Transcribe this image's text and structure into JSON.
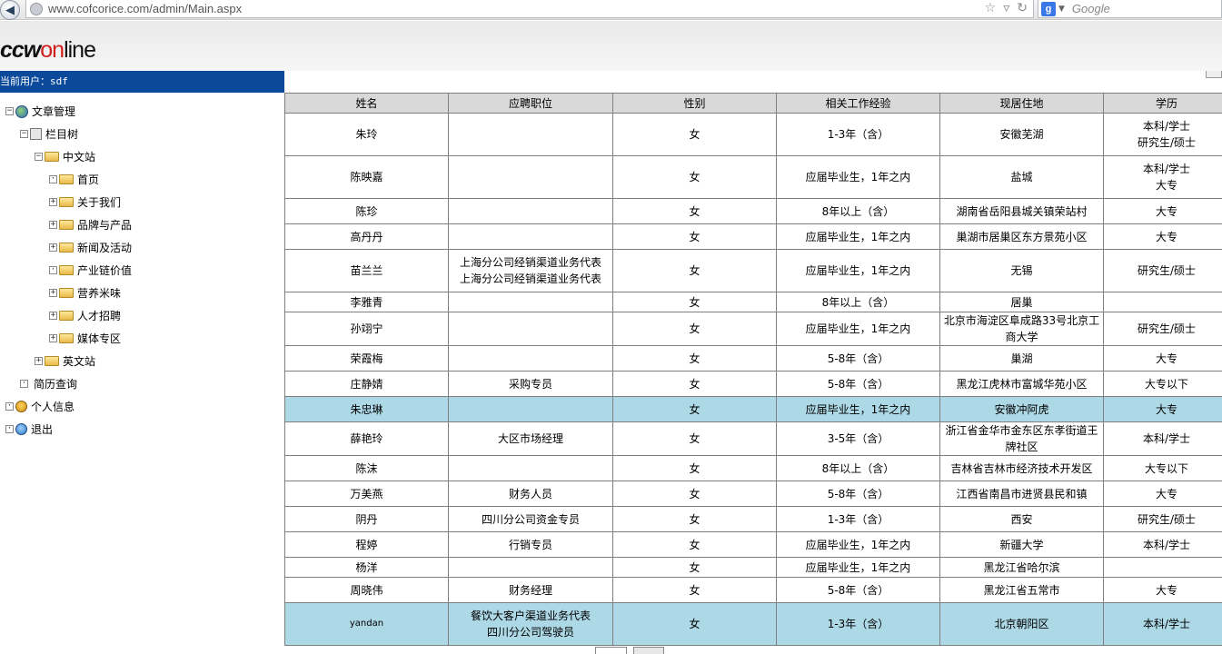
{
  "browser": {
    "url": "www.cofcorice.com/admin/Main.aspx",
    "search_placeholder": "Google"
  },
  "header": {
    "logo_prefix": "ccw",
    "logo_on": "on",
    "logo_suffix": "line"
  },
  "sidebar": {
    "current_user_label": "当前用户：",
    "current_user": "sdf",
    "tree": [
      {
        "label": "文章管理",
        "level": 0,
        "exp": "−",
        "icon": "globe-icon"
      },
      {
        "label": "栏目树",
        "level": 1,
        "exp": "−",
        "icon": "book-icon"
      },
      {
        "label": "中文站",
        "level": 2,
        "exp": "−",
        "icon": "folder-icon"
      },
      {
        "label": "首页",
        "level": 3,
        "exp": "·",
        "icon": "folder-icon"
      },
      {
        "label": "关于我们",
        "level": 3,
        "exp": "+",
        "icon": "folder-icon"
      },
      {
        "label": "品牌与产品",
        "level": 3,
        "exp": "+",
        "icon": "folder-icon"
      },
      {
        "label": "新闻及活动",
        "level": 3,
        "exp": "+",
        "icon": "folder-icon"
      },
      {
        "label": "产业链价值",
        "level": 3,
        "exp": "·",
        "icon": "folder-icon"
      },
      {
        "label": "营养米味",
        "level": 3,
        "exp": "+",
        "icon": "folder-icon"
      },
      {
        "label": "人才招聘",
        "level": 3,
        "exp": "+",
        "icon": "folder-icon"
      },
      {
        "label": "媒体专区",
        "level": 3,
        "exp": "+",
        "icon": "folder-icon"
      },
      {
        "label": "英文站",
        "level": 2,
        "exp": "+",
        "icon": "folder-icon"
      },
      {
        "label": "简历查询",
        "level": 1,
        "exp": "·",
        "icon": "none"
      },
      {
        "label": "个人信息",
        "level": 0,
        "exp": "·",
        "icon": "person-icon"
      },
      {
        "label": "退出",
        "level": 0,
        "exp": "·",
        "icon": "exit-icon"
      }
    ]
  },
  "table": {
    "headers": [
      "姓名",
      "应聘职位",
      "性别",
      "相关工作经验",
      "现居住地",
      "学历"
    ],
    "rows": [
      {
        "name": "朱玲",
        "position": "",
        "gender": "女",
        "exp": "1-3年（含）",
        "address": "安徽芜湖",
        "edu": "本科/学士\n研究生/硕士",
        "h": 47
      },
      {
        "name": "陈映嘉",
        "position": "",
        "gender": "女",
        "exp": "应届毕业生，1年之内",
        "address": "盐城",
        "edu": "本科/学士\n大专",
        "h": 47
      },
      {
        "name": "陈珍",
        "position": "",
        "gender": "女",
        "exp": "8年以上（含）",
        "address": "湖南省岳阳县城关镇荣站村",
        "edu": "大专",
        "h": 28
      },
      {
        "name": "高丹丹",
        "position": "",
        "gender": "女",
        "exp": "应届毕业生，1年之内",
        "address": "巢湖市居巢区东方景苑小区",
        "edu": "大专",
        "h": 28
      },
      {
        "name": "苗兰兰",
        "position": "上海分公司经销渠道业务代表\n上海分公司经销渠道业务代表",
        "gender": "女",
        "exp": "应届毕业生，1年之内",
        "address": "无锡",
        "edu": "研究生/硕士",
        "h": 47
      },
      {
        "name": "李雅青",
        "position": "",
        "gender": "女",
        "exp": "8年以上（含）",
        "address": "居巢",
        "edu": "",
        "h": 22
      },
      {
        "name": "孙翊宁",
        "position": "",
        "gender": "女",
        "exp": "应届毕业生，1年之内",
        "address": "北京市海淀区阜成路33号北京工商大学",
        "edu": "研究生/硕士",
        "h": 37
      },
      {
        "name": "荣霞梅",
        "position": "",
        "gender": "女",
        "exp": "5-8年（含）",
        "address": "巢湖",
        "edu": "大专",
        "h": 28
      },
      {
        "name": "庄静婧",
        "position": "采购专员",
        "gender": "女",
        "exp": "5-8年（含）",
        "address": "黑龙江虎林市富城华苑小区",
        "edu": "大专以下",
        "h": 28
      },
      {
        "name": "朱忠琳",
        "position": "",
        "gender": "女",
        "exp": "应届毕业生，1年之内",
        "address": "安徽冲阿虎",
        "edu": "大专",
        "h": 28,
        "hl": true
      },
      {
        "name": "薛艳玲",
        "position": "大区市场经理",
        "gender": "女",
        "exp": "3-5年（含）",
        "address": "浙江省金华市金东区东孝街道王牌社区",
        "edu": "本科/学士",
        "h": 37
      },
      {
        "name": "陈沫",
        "position": "",
        "gender": "女",
        "exp": "8年以上（含）",
        "address": "吉林省吉林市经济技术开发区",
        "edu": "大专以下",
        "h": 28
      },
      {
        "name": "万美燕",
        "position": "财务人员",
        "gender": "女",
        "exp": "5-8年（含）",
        "address": "江西省南昌市进贤县民和镇",
        "edu": "大专",
        "h": 28
      },
      {
        "name": "阴丹",
        "position": "四川分公司资金专员",
        "gender": "女",
        "exp": "1-3年（含）",
        "address": "西安",
        "edu": "研究生/硕士",
        "h": 28
      },
      {
        "name": "程婷",
        "position": "行销专员",
        "gender": "女",
        "exp": "应届毕业生，1年之内",
        "address": "新疆大学",
        "edu": "本科/学士",
        "h": 28
      },
      {
        "name": "杨洋",
        "position": "",
        "gender": "女",
        "exp": "应届毕业生，1年之内",
        "address": "黑龙江省哈尔滨",
        "edu": "",
        "h": 22
      },
      {
        "name": "周晓伟",
        "position": "财务经理",
        "gender": "女",
        "exp": "5-8年（含）",
        "address": "黑龙江省五常市",
        "edu": "大专",
        "h": 28
      },
      {
        "name": "yandan",
        "position": "餐饮大客户渠道业务代表\n四川分公司驾驶员",
        "gender": "女",
        "exp": "1-3年（含）",
        "address": "北京朝阳区",
        "edu": "本科/学士",
        "h": 47,
        "hl": true,
        "small": true
      }
    ]
  },
  "colors": {
    "user_bar": "#0b4a9a",
    "header_row": "#d9d9d9",
    "highlight_row": "#add8e6"
  }
}
